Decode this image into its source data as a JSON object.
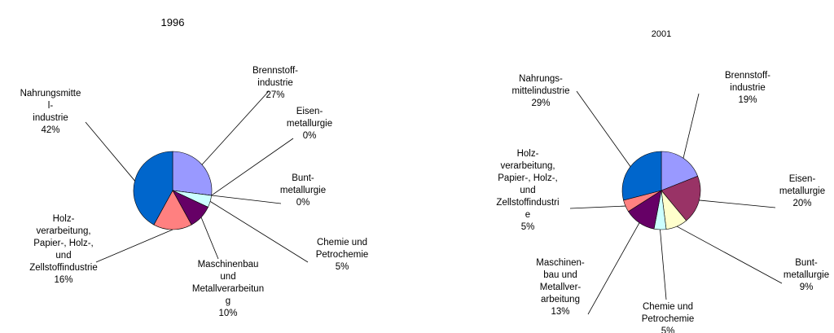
{
  "chart_data": [
    {
      "type": "pie",
      "title": "1996",
      "categories": [
        "Brennstoff-\nindustrie",
        "Eisen-\nmetallurgie",
        "Bunt-\nmetallurgie",
        "Chemie und\nPetrochemie",
        "Maschinenbau\nund\nMetallverarbeitun\ng",
        "Holz-\nverarbeitung,\nPapier-, Holz-,\nund\nZellstoffindustrie",
        "Nahrungsmitte\nl-\nindustrie"
      ],
      "values": [
        27,
        0,
        0,
        5,
        10,
        16,
        42
      ],
      "value_labels": [
        "27%",
        "0%",
        "0%",
        "5%",
        "10%",
        "16%",
        "42%"
      ],
      "colors": [
        "#9999ff",
        "#993366",
        "#ffffcc",
        "#ccffff",
        "#660066",
        "#ff8080",
        "#0066cc"
      ]
    },
    {
      "type": "pie",
      "title": "2001",
      "categories": [
        "Brennstoff-\nindustrie",
        "Eisen-\nmetallurgie",
        "Bunt-\nmetallurgie",
        "Chemie und\nPetrochemie",
        "Maschinen-\nbau und\nMetallver-\narbeitung",
        "Holz-\nverarbeitung,\nPapier-, Holz-,\nund\nZellstoffindustri\ne",
        "Nahrungs-\nmittelindustrie"
      ],
      "values": [
        19,
        20,
        9,
        5,
        13,
        5,
        29
      ],
      "value_labels": [
        "19%",
        "20%",
        "9%",
        "5%",
        "13%",
        "5%",
        "29%"
      ],
      "colors": [
        "#9999ff",
        "#993366",
        "#ffffcc",
        "#ccffff",
        "#660066",
        "#ff8080",
        "#0066cc"
      ]
    }
  ]
}
